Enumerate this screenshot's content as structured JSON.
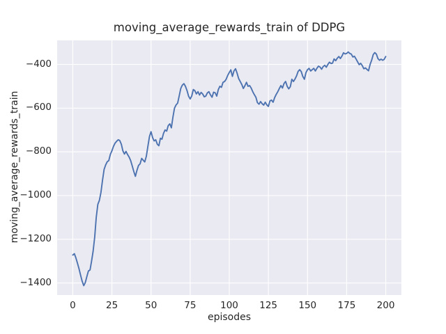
{
  "title": "moving_average_rewards_train of DDPG",
  "colors": {
    "figure_background": "#ffffff",
    "plot_background": "#eaeaf2",
    "grid": "#ffffff",
    "line": "#4c72b0",
    "text": "#262626"
  },
  "chart_data": {
    "type": "line",
    "title": "moving_average_rewards_train of DDPG",
    "xlabel": "episodes",
    "ylabel": "moving_average_rewards_train",
    "legend": "none",
    "grid": true,
    "xlim": [
      -10,
      210
    ],
    "ylim": [
      -1455,
      -290
    ],
    "x_tick_values": [
      0,
      25,
      50,
      75,
      100,
      125,
      150,
      175,
      200
    ],
    "x_tick_labels": [
      "0",
      "25",
      "50",
      "75",
      "100",
      "125",
      "150",
      "175",
      "200"
    ],
    "y_tick_values": [
      -400,
      -600,
      -800,
      -1000,
      -1200,
      -1400
    ],
    "y_tick_labels": [
      "−400",
      "−600",
      "−800",
      "−1000",
      "−1200",
      "−1400"
    ],
    "series": [
      {
        "name": "moving_average_rewards_train",
        "x_note": "x value = episode index, 0 through 200",
        "values": [
          -1272,
          -1266,
          -1285,
          -1310,
          -1335,
          -1365,
          -1392,
          -1412,
          -1398,
          -1370,
          -1345,
          -1340,
          -1300,
          -1255,
          -1190,
          -1100,
          -1040,
          -1022,
          -985,
          -930,
          -880,
          -860,
          -845,
          -840,
          -812,
          -795,
          -775,
          -760,
          -752,
          -745,
          -748,
          -765,
          -795,
          -810,
          -798,
          -812,
          -824,
          -840,
          -865,
          -890,
          -912,
          -885,
          -862,
          -855,
          -830,
          -838,
          -846,
          -820,
          -775,
          -730,
          -708,
          -735,
          -750,
          -745,
          -765,
          -772,
          -738,
          -742,
          -715,
          -700,
          -705,
          -680,
          -672,
          -690,
          -640,
          -600,
          -585,
          -577,
          -545,
          -510,
          -495,
          -488,
          -500,
          -520,
          -545,
          -558,
          -545,
          -515,
          -520,
          -535,
          -525,
          -540,
          -528,
          -535,
          -548,
          -545,
          -530,
          -525,
          -540,
          -550,
          -527,
          -530,
          -545,
          -515,
          -500,
          -505,
          -482,
          -478,
          -468,
          -450,
          -437,
          -425,
          -455,
          -430,
          -420,
          -440,
          -465,
          -478,
          -492,
          -510,
          -497,
          -482,
          -500,
          -497,
          -508,
          -525,
          -538,
          -550,
          -575,
          -582,
          -570,
          -580,
          -586,
          -573,
          -585,
          -592,
          -567,
          -563,
          -573,
          -552,
          -537,
          -525,
          -510,
          -497,
          -508,
          -487,
          -478,
          -500,
          -512,
          -502,
          -468,
          -478,
          -467,
          -452,
          -432,
          -424,
          -433,
          -455,
          -468,
          -438,
          -424,
          -418,
          -430,
          -424,
          -418,
          -430,
          -418,
          -408,
          -412,
          -422,
          -410,
          -404,
          -413,
          -400,
          -390,
          -396,
          -394,
          -375,
          -383,
          -372,
          -364,
          -373,
          -362,
          -347,
          -352,
          -350,
          -343,
          -350,
          -353,
          -366,
          -363,
          -375,
          -388,
          -401,
          -395,
          -406,
          -420,
          -416,
          -423,
          -429,
          -400,
          -381,
          -355,
          -346,
          -353,
          -373,
          -381,
          -376,
          -381,
          -377,
          -364
        ]
      }
    ]
  }
}
